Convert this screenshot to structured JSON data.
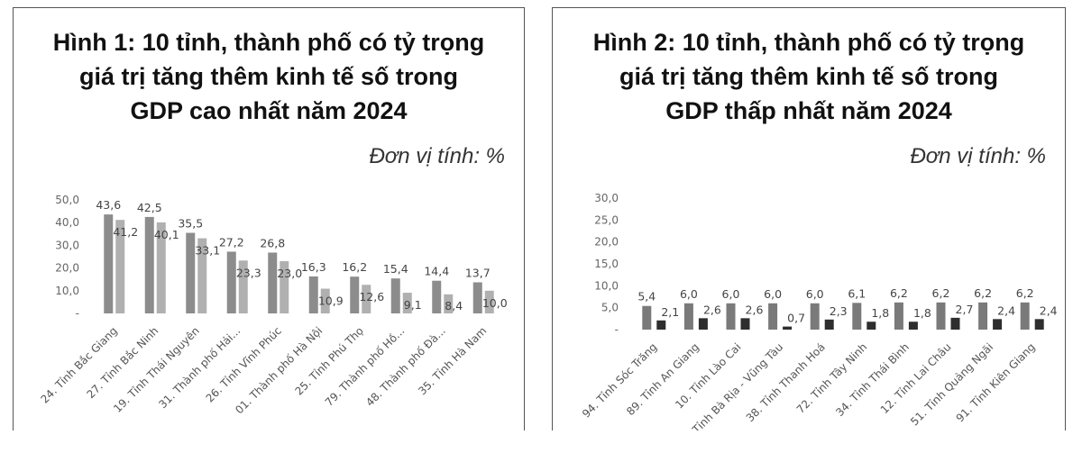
{
  "chart_data": [
    {
      "type": "bar",
      "title": "Hình 1: 10 tỉnh, thành phố có tỷ trọng giá trị tăng thêm kinh tế số trong GDP cao nhất năm 2024",
      "title_lines": [
        "Hình 1: 10 tỉnh, thành phố có tỷ trọng",
        "giá trị tăng thêm kinh tế số trong",
        "GDP cao nhất năm 2024"
      ],
      "unit_label": "Đơn vị tính: %",
      "categories": [
        "24. Tỉnh Bắc Giang",
        "27. Tỉnh Bắc Ninh",
        "19. Tỉnh Thái Nguyên",
        "31. Thành phố Hải...",
        "26. Tỉnh Vĩnh Phúc",
        "01. Thành phố Hà Nội",
        "25. Tỉnh Phú Thọ",
        "79. Thành phố Hồ...",
        "48. Thành phố Đà...",
        "35. Tỉnh Hà Nam"
      ],
      "series": [
        {
          "values": [
            43.6,
            42.5,
            35.5,
            27.2,
            26.8,
            16.3,
            16.2,
            15.4,
            14.4,
            13.7
          ],
          "labels": [
            "43,6",
            "42,5",
            "35,5",
            "27,2",
            "26,8",
            "16,3",
            "16,2",
            "15,4",
            "14,4",
            "13,7"
          ]
        },
        {
          "values": [
            41.2,
            40.1,
            33.1,
            23.3,
            23.0,
            10.9,
            12.6,
            9.1,
            8.4,
            10.0
          ],
          "labels": [
            "41,2",
            "40,1",
            "33,1",
            "23,3",
            "23,0",
            "10,9",
            "12,6",
            "9,1",
            "8,4",
            "10,0"
          ]
        }
      ],
      "yticks": [
        "-",
        "10,0",
        "20,0",
        "30,0",
        "40,0",
        "50,0"
      ],
      "ylim": [
        0,
        50
      ],
      "colors": [
        "#8c8c8c",
        "#b0b0b0"
      ],
      "grid": false,
      "legend": "none"
    },
    {
      "type": "bar",
      "title": "Hình 2: 10 tỉnh, thành phố có tỷ trọng giá trị tăng thêm kinh tế số trong GDP thấp nhất năm 2024",
      "title_lines": [
        "Hình 2: 10 tỉnh, thành phố có tỷ trọng",
        "giá trị tăng thêm kinh tế số trong",
        "GDP thấp nhất năm 2024"
      ],
      "unit_label": "Đơn vị tính: %",
      "categories": [
        "94. Tỉnh Sóc Trăng",
        "89. Tỉnh An Giang",
        "10. Tỉnh Lào Cai",
        "77. Tỉnh Bà Rịa - Vũng Tàu",
        "38. Tỉnh Thanh Hoá",
        "72. Tỉnh Tây Ninh",
        "34. Tỉnh Thái Bình",
        "12. Tỉnh Lai Châu",
        "51. Tỉnh Quảng Ngãi",
        "91. Tỉnh Kiên Giang"
      ],
      "series": [
        {
          "values": [
            5.4,
            6.0,
            6.0,
            6.0,
            6.0,
            6.1,
            6.2,
            6.2,
            6.2,
            6.2
          ],
          "labels": [
            "5,4",
            "6,0",
            "6,0",
            "6,0",
            "6,0",
            "6,1",
            "6,2",
            "6,2",
            "6,2",
            "6,2"
          ]
        },
        {
          "values": [
            2.1,
            2.6,
            2.6,
            0.7,
            2.3,
            1.8,
            1.8,
            2.7,
            2.4,
            2.4
          ],
          "labels": [
            "2,1",
            "2,6",
            "2,6",
            "0,7",
            "2,3",
            "1,8",
            "1,8",
            "2,7",
            "2,4",
            "2,4"
          ]
        }
      ],
      "yticks": [
        "-",
        "5,0",
        "10,0",
        "15,0",
        "20,0",
        "25,0",
        "30,0"
      ],
      "ylim": [
        0,
        30
      ],
      "colors": [
        "#7a7a7a",
        "#2e2e2e"
      ],
      "grid": false,
      "legend": "none"
    }
  ]
}
